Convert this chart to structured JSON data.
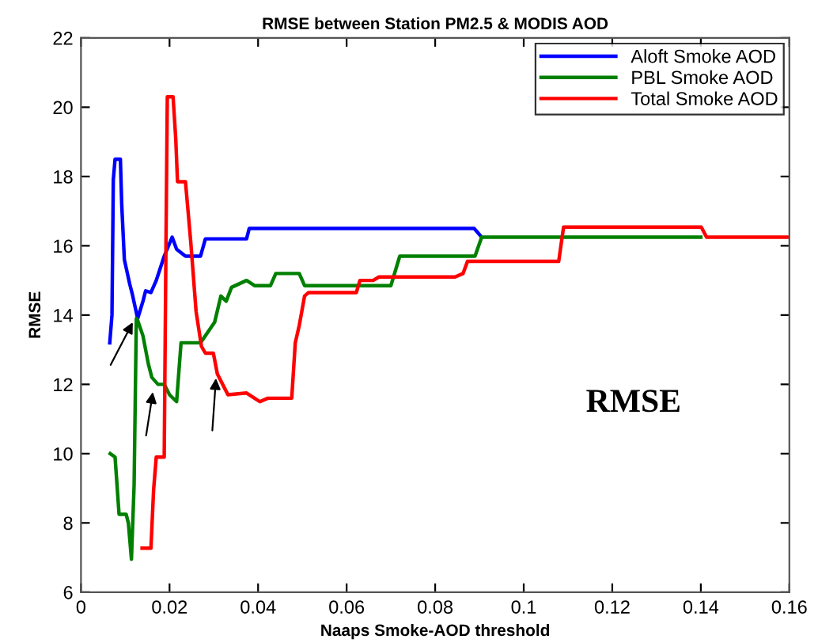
{
  "chart_data": {
    "type": "line",
    "title": "RMSE between Station PM2.5 & MODIS AOD",
    "xlabel": "Naaps Smoke-AOD threshold",
    "ylabel": "RMSE",
    "annotations": [
      "RMSE"
    ],
    "xlim": [
      0,
      0.16
    ],
    "xticks": [
      0,
      0.02,
      0.04,
      0.06,
      0.08,
      0.1,
      0.12,
      0.14,
      0.16
    ],
    "ylim": [
      6,
      22
    ],
    "yticks": [
      6,
      8,
      10,
      12,
      14,
      16,
      18,
      20,
      22
    ],
    "grid": false,
    "legend": "top right",
    "line_style": "solid",
    "marker": "none",
    "series": [
      {
        "name": "Aloft Smoke AOD",
        "color": "#0000ff",
        "x": [
          0.0065,
          0.007,
          0.0073,
          0.0077,
          0.0089,
          0.0092,
          0.0098,
          0.011,
          0.0116,
          0.0128,
          0.014,
          0.0146,
          0.0158,
          0.017,
          0.0188,
          0.0206,
          0.0216,
          0.0236,
          0.027,
          0.0281,
          0.0374,
          0.038,
          0.0888,
          0.0905
        ],
        "values": [
          13.2,
          14.0,
          17.9,
          18.5,
          18.5,
          17.2,
          15.6,
          14.9,
          14.6,
          13.9,
          14.4,
          14.7,
          14.65,
          15.0,
          15.7,
          16.25,
          15.9,
          15.7,
          15.7,
          16.2,
          16.2,
          16.5,
          16.5,
          16.25
        ]
      },
      {
        "name": "PBL Smoke AOD",
        "color": "#008000",
        "x": [
          0.0066,
          0.0077,
          0.0086,
          0.0102,
          0.0107,
          0.0114,
          0.012,
          0.0125,
          0.0128,
          0.014,
          0.0152,
          0.016,
          0.0174,
          0.0188,
          0.02,
          0.0216,
          0.0226,
          0.027,
          0.0302,
          0.0316,
          0.0328,
          0.034,
          0.0374,
          0.0392,
          0.0428,
          0.044,
          0.0493,
          0.0505,
          0.07,
          0.072,
          0.089,
          0.0905,
          0.14
        ],
        "values": [
          10.0,
          9.9,
          8.25,
          8.25,
          8.0,
          6.95,
          9.1,
          13.9,
          13.85,
          13.4,
          12.6,
          12.2,
          12.0,
          12.0,
          11.7,
          11.5,
          13.2,
          13.2,
          13.8,
          14.55,
          14.4,
          14.8,
          15.0,
          14.85,
          14.85,
          15.2,
          15.2,
          14.85,
          14.85,
          15.7,
          15.7,
          16.25,
          16.25
        ]
      },
      {
        "name": "Total Smoke AOD",
        "color": "#ff0000",
        "x": [
          0.0138,
          0.0158,
          0.0164,
          0.017,
          0.0188,
          0.0192,
          0.0195,
          0.0208,
          0.0214,
          0.0218,
          0.0236,
          0.0248,
          0.026,
          0.0272,
          0.0281,
          0.0299,
          0.0308,
          0.032,
          0.0332,
          0.0374,
          0.0392,
          0.0404,
          0.0422,
          0.0476,
          0.0484,
          0.0493,
          0.0505,
          0.0514,
          0.0622,
          0.063,
          0.066,
          0.0673,
          0.0845,
          0.0863,
          0.0873,
          0.1079,
          0.109,
          0.1401,
          0.1413,
          0.16
        ],
        "values": [
          7.27,
          7.27,
          8.95,
          9.9,
          9.9,
          16.1,
          20.3,
          20.3,
          19.1,
          17.85,
          17.85,
          16.1,
          14.1,
          13.1,
          12.9,
          12.9,
          12.3,
          12.0,
          11.7,
          11.75,
          11.6,
          11.5,
          11.6,
          11.6,
          13.2,
          13.7,
          14.55,
          14.65,
          14.65,
          15.0,
          15.0,
          15.1,
          15.1,
          15.2,
          15.55,
          15.55,
          16.54,
          16.54,
          16.25,
          16.25
        ]
      }
    ]
  }
}
